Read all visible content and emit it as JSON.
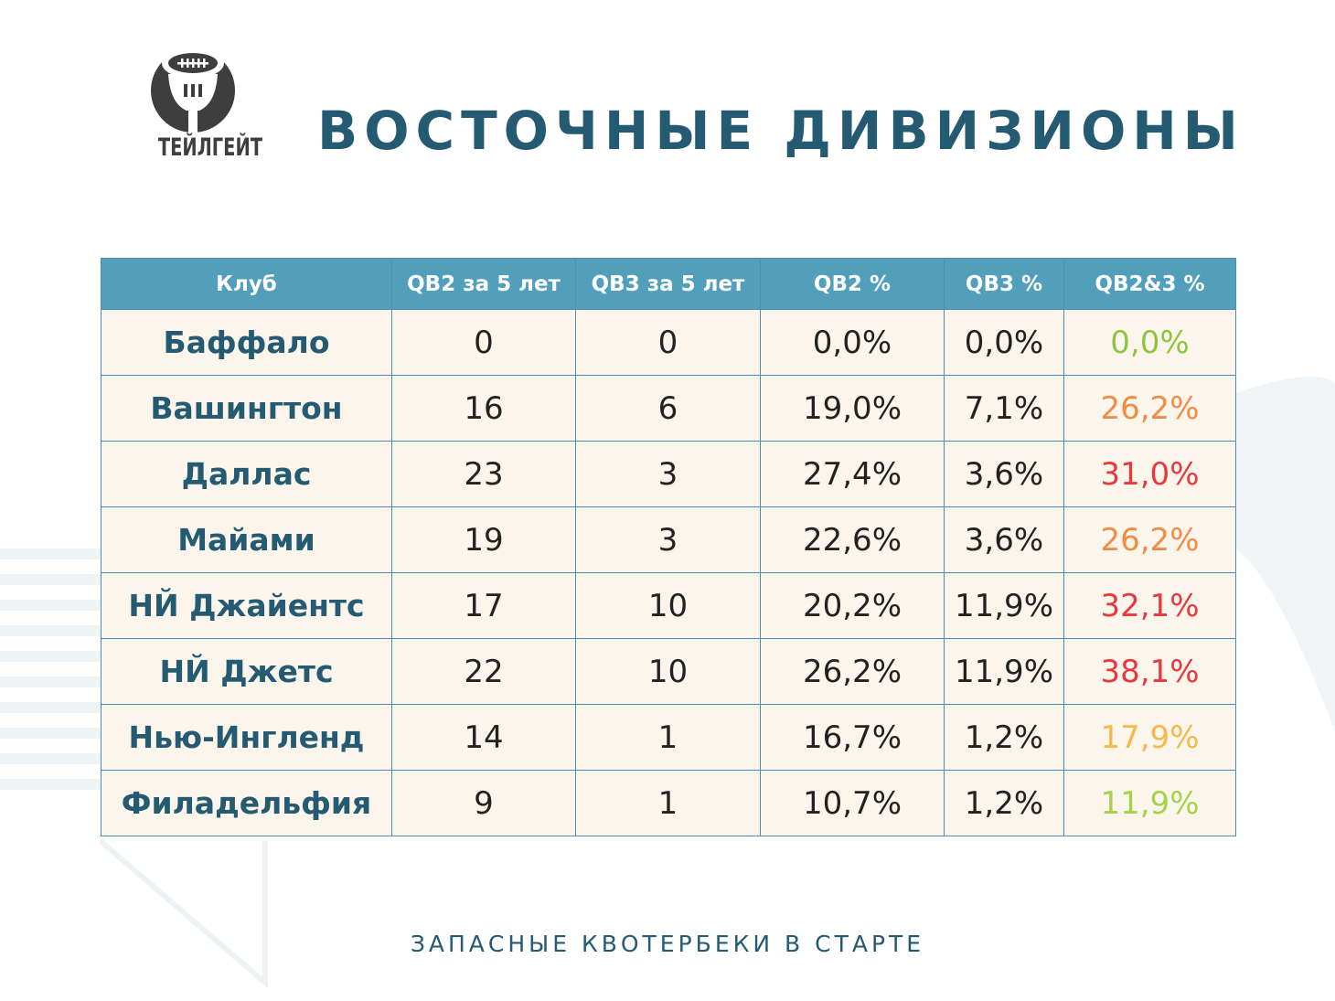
{
  "logo": {
    "text": "ТЕЙЛГЕЙТ"
  },
  "title": "ВОСТОЧНЫЕ ДИВИЗИОНЫ",
  "table": {
    "headers": [
      "Клуб",
      "QB2 за 5 лет",
      "QB3 за 5 лет",
      "QB2 %",
      "QB3 %",
      "QB2&3 %"
    ],
    "rows": [
      {
        "club": "Баффало",
        "qb2": "0",
        "qb3": "0",
        "qb2_pct": "0,0%",
        "qb3_pct": "0,0%",
        "qb23_pct": "0,0%",
        "qb23_color": "#8cc63f"
      },
      {
        "club": "Вашингтон",
        "qb2": "16",
        "qb3": "6",
        "qb2_pct": "19,0%",
        "qb3_pct": "7,1%",
        "qb23_pct": "26,2%",
        "qb23_color": "#f28c45"
      },
      {
        "club": "Даллас",
        "qb2": "23",
        "qb3": "3",
        "qb2_pct": "27,4%",
        "qb3_pct": "3,6%",
        "qb23_pct": "31,0%",
        "qb23_color": "#e8383d"
      },
      {
        "club": "Майами",
        "qb2": "19",
        "qb3": "3",
        "qb2_pct": "22,6%",
        "qb3_pct": "3,6%",
        "qb23_pct": "26,2%",
        "qb23_color": "#f28c45"
      },
      {
        "club": "НЙ Джайентс",
        "qb2": "17",
        "qb3": "10",
        "qb2_pct": "20,2%",
        "qb3_pct": "11,9%",
        "qb23_pct": "32,1%",
        "qb23_color": "#e8383d"
      },
      {
        "club": "НЙ Джетс",
        "qb2": "22",
        "qb3": "10",
        "qb2_pct": "26,2%",
        "qb3_pct": "11,9%",
        "qb23_pct": "38,1%",
        "qb23_color": "#e8383d"
      },
      {
        "club": "Нью-Ингленд",
        "qb2": "14",
        "qb3": "1",
        "qb2_pct": "16,7%",
        "qb3_pct": "1,2%",
        "qb23_pct": "17,9%",
        "qb23_color": "#f6b84a"
      },
      {
        "club": "Филадельфия",
        "qb2": "9",
        "qb3": "1",
        "qb2_pct": "10,7%",
        "qb3_pct": "1,2%",
        "qb23_pct": "11,9%",
        "qb23_color": "#a5d24a"
      }
    ]
  },
  "footer": "ЗАПАСНЫЕ КВОТЕРБЕКИ В СТАРТЕ",
  "colors": {
    "title": "#245a72",
    "header_bg": "#519fbb",
    "cell_bg": "#fcf5ec",
    "border": "#4b8fae"
  }
}
